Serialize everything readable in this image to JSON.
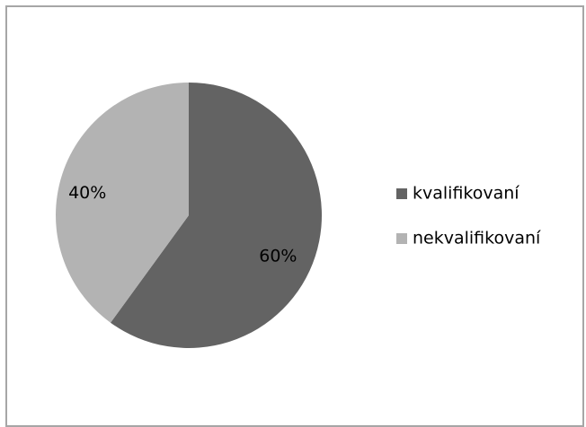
{
  "chart_data": {
    "type": "pie",
    "categories": [
      "kvalifikovaní",
      "nekvalifikovaní"
    ],
    "values": [
      60,
      40
    ],
    "labels": [
      "60%",
      "40%"
    ],
    "colors": [
      "#636363",
      "#b3b3b3"
    ],
    "legend": [
      "kvalifikovaní",
      "nekvalifikovaní"
    ],
    "legend_position": "right"
  }
}
